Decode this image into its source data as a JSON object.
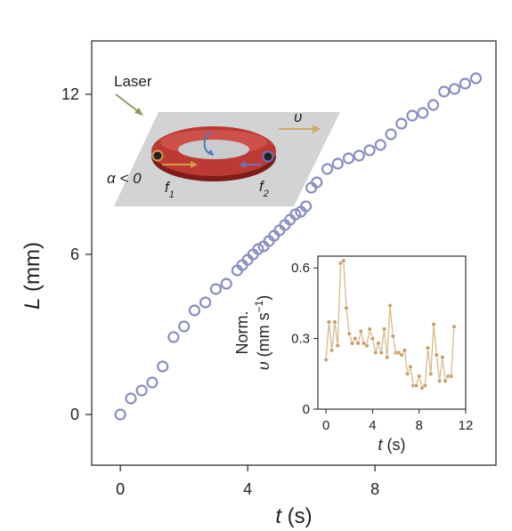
{
  "chart_data": [
    {
      "type": "scatter",
      "xlabel_var": "t",
      "xlabel_unit": "(s)",
      "ylabel_var": "L",
      "ylabel_unit": "(mm)",
      "xlim": [
        -0.9,
        11.8
      ],
      "ylim": [
        -1.9,
        14.0
      ],
      "xticks": [
        "0",
        "4",
        "8"
      ],
      "xtick_values": [
        0,
        4,
        8
      ],
      "yticks": [
        "0",
        "6",
        "12"
      ],
      "ytick_values": [
        0,
        6,
        12
      ],
      "marker_color": "#8a8fc0",
      "x": [
        0,
        0.33,
        0.67,
        1.0,
        1.33,
        1.67,
        2.0,
        2.33,
        2.67,
        3.0,
        3.33,
        3.67,
        3.83,
        4.0,
        4.17,
        4.33,
        4.5,
        4.67,
        4.83,
        5.0,
        5.17,
        5.33,
        5.5,
        5.67,
        5.83,
        6.0,
        6.17,
        6.5,
        6.83,
        7.17,
        7.5,
        7.83,
        8.17,
        8.5,
        8.83,
        9.17,
        9.5,
        9.83,
        10.17,
        10.5,
        10.83,
        11.17
      ],
      "y": [
        0,
        0.6,
        0.9,
        1.2,
        1.8,
        2.9,
        3.3,
        3.9,
        4.2,
        4.7,
        4.9,
        5.4,
        5.6,
        5.8,
        6.0,
        6.2,
        6.3,
        6.5,
        6.7,
        6.9,
        7.1,
        7.3,
        7.5,
        7.6,
        7.8,
        8.5,
        8.7,
        9.2,
        9.4,
        9.6,
        9.7,
        9.9,
        10.1,
        10.5,
        10.9,
        11.2,
        11.3,
        11.6,
        12.1,
        12.2,
        12.4,
        12.6
      ]
    },
    {
      "type": "line",
      "xlabel_var": "t",
      "xlabel_unit": "(s)",
      "ylabel_line1": "Norm.",
      "ylabel_var": "υ",
      "ylabel_unit": "(mm s",
      "ylabel_sup": "−1",
      "ylabel_close": ")",
      "xlim": [
        -0.7,
        12
      ],
      "ylim": [
        0,
        0.65
      ],
      "xticks": [
        "0",
        "4",
        "8",
        "12"
      ],
      "xtick_values": [
        0,
        4,
        8,
        12
      ],
      "yticks": [
        "0",
        "0.3",
        "0.6"
      ],
      "ytick_values": [
        0,
        0.3,
        0.6
      ],
      "line_color": "#d9b98c",
      "marker_color": "#c9a06a",
      "x": [
        0,
        0.25,
        0.5,
        0.75,
        1.0,
        1.25,
        1.5,
        1.75,
        2.0,
        2.25,
        2.5,
        2.75,
        3.0,
        3.25,
        3.5,
        3.75,
        4.0,
        4.25,
        4.5,
        4.75,
        5.0,
        5.25,
        5.5,
        5.75,
        6.0,
        6.25,
        6.5,
        6.75,
        7.0,
        7.25,
        7.5,
        7.75,
        8.0,
        8.25,
        8.5,
        8.75,
        9.0,
        9.25,
        9.5,
        9.75,
        10.0,
        10.25,
        10.5,
        10.75,
        11.0
      ],
      "y": [
        0.21,
        0.37,
        0.25,
        0.37,
        0.27,
        0.62,
        0.63,
        0.43,
        0.32,
        0.28,
        0.3,
        0.28,
        0.33,
        0.28,
        0.27,
        0.34,
        0.3,
        0.24,
        0.28,
        0.24,
        0.34,
        0.22,
        0.44,
        0.31,
        0.24,
        0.24,
        0.23,
        0.25,
        0.15,
        0.18,
        0.1,
        0.1,
        0.14,
        0.09,
        0.1,
        0.26,
        0.15,
        0.36,
        0.23,
        0.12,
        0.22,
        0.12,
        0.14,
        0.14,
        0.35
      ]
    }
  ],
  "schematic": {
    "laser_label": "Laser",
    "velocity_label": "υ",
    "alpha_label": "α < 0",
    "f1_var": "f",
    "f1_sub": "1",
    "f2_var": "f",
    "f2_sub": "2",
    "laser_arrow_color": "#8f9a62",
    "velocity_arrow_color": "#d4a868",
    "ring_color": "#b8322d",
    "f1_color": "#d49a45",
    "f2_color": "#6b74b8"
  }
}
